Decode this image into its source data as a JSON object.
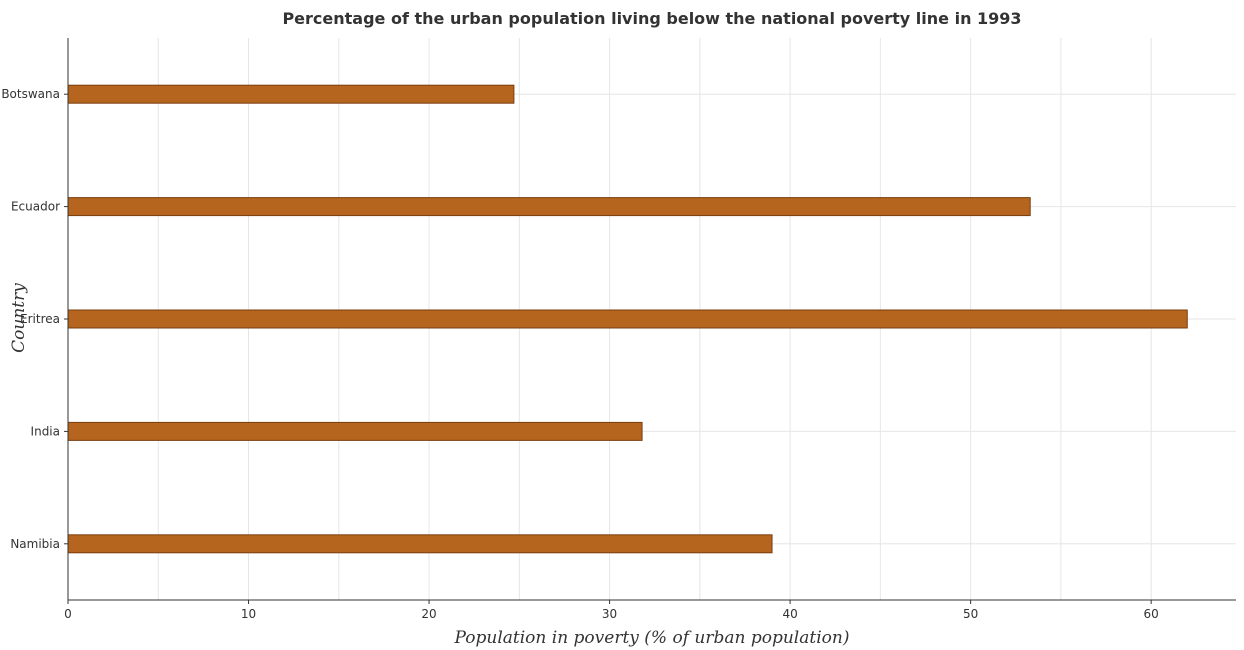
{
  "chart_data": {
    "type": "bar",
    "orientation": "horizontal",
    "title": "Percentage of the urban population living below the national poverty line in 1993",
    "xlabel": "Population in poverty (% of urban population)",
    "ylabel": "Country",
    "categories": [
      "Botswana",
      "Ecuador",
      "Eritrea",
      "India",
      "Namibia"
    ],
    "values": [
      24.7,
      53.3,
      62.0,
      31.8,
      39.0
    ],
    "xlim": [
      0,
      64.7
    ],
    "xticks": [
      0,
      10,
      20,
      30,
      40,
      50,
      60
    ],
    "grid": true,
    "bar_color": "#b5651d",
    "bar_edge_color": "#7a3d0e"
  }
}
